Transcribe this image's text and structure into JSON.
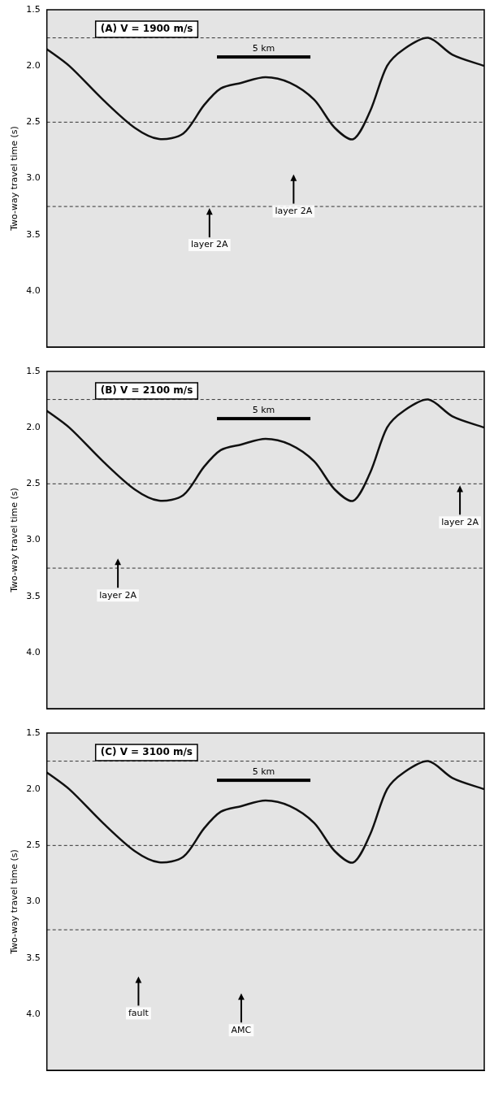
{
  "chart_data": [
    {
      "type": "line",
      "title": "(A) V = 1900 m/s",
      "y_label": "Two-way travel time (s)",
      "x": [
        0,
        1.2,
        3.0,
        4.7,
        6.0,
        7.3,
        8.4,
        9.3,
        10.4,
        11.7,
        13.0,
        14.3,
        15.4,
        16.4,
        17.3,
        18.2,
        19.1,
        20.4,
        21.7,
        23.4
      ],
      "series": [
        {
          "color": "#111111",
          "values": [
            1.85,
            2.0,
            2.3,
            2.55,
            2.65,
            2.6,
            2.35,
            2.2,
            2.15,
            2.1,
            2.15,
            2.3,
            2.55,
            2.65,
            2.4,
            2.0,
            1.85,
            1.75,
            1.9,
            2.0
          ]
        }
      ],
      "xlim": [
        0,
        23.4
      ],
      "ylim": [
        1.5,
        4.5
      ],
      "yticks": [
        1.5,
        {
          "value": 2,
          "label": "2.0"
        },
        2.5,
        {
          "value": 3,
          "label": "3.0"
        },
        3.5,
        {
          "value": 4,
          "label": "4.0"
        }
      ],
      "tick_labels": "y",
      "grid": false,
      "hlines": [
        1.75,
        2.5,
        3.25
      ],
      "scale_bar": {
        "label": "5 km",
        "x": 9.1,
        "y": 1.92,
        "length": 5
      },
      "annotations": [
        {
          "text": "layer 2A",
          "x": 8.7,
          "y": 3.25
        },
        {
          "text": "layer 2A",
          "x": 13.2,
          "y": 2.95
        }
      ]
    },
    {
      "type": "line",
      "title": "(B) V = 2100 m/s",
      "y_label": "Two-way travel time (s)",
      "x": [
        0,
        1.2,
        3.0,
        4.7,
        6.0,
        7.3,
        8.4,
        9.3,
        10.4,
        11.7,
        13.0,
        14.3,
        15.4,
        16.4,
        17.3,
        18.2,
        19.1,
        20.4,
        21.7,
        23.4
      ],
      "series": [
        {
          "color": "#111111",
          "values": [
            1.85,
            2.0,
            2.3,
            2.55,
            2.65,
            2.6,
            2.35,
            2.2,
            2.15,
            2.1,
            2.15,
            2.3,
            2.55,
            2.65,
            2.4,
            2.0,
            1.85,
            1.75,
            1.9,
            2.0
          ]
        }
      ],
      "xlim": [
        0,
        23.4
      ],
      "ylim": [
        1.5,
        4.5
      ],
      "yticks": [
        1.5,
        {
          "value": 2,
          "label": "2.0"
        },
        2.5,
        {
          "value": 3,
          "label": "3.0"
        },
        3.5,
        {
          "value": 4,
          "label": "4.0"
        }
      ],
      "tick_labels": "y",
      "grid": false,
      "hlines": [
        1.75,
        2.5,
        3.25
      ],
      "scale_bar": {
        "label": "5 km",
        "x": 9.1,
        "y": 1.92,
        "length": 5
      },
      "annotations": [
        {
          "text": "layer 2A",
          "x": 3.8,
          "y": 3.15
        },
        {
          "text": "layer 2A",
          "x": 22.1,
          "y": 2.5
        }
      ]
    },
    {
      "type": "line",
      "title": "(C) V = 3100 m/s",
      "y_label": "Two-way travel time (s)",
      "x": [
        0,
        1.2,
        3.0,
        4.7,
        6.0,
        7.3,
        8.4,
        9.3,
        10.4,
        11.7,
        13.0,
        14.3,
        15.4,
        16.4,
        17.3,
        18.2,
        19.1,
        20.4,
        21.7,
        23.4
      ],
      "series": [
        {
          "color": "#111111",
          "values": [
            1.85,
            2.0,
            2.3,
            2.55,
            2.65,
            2.6,
            2.35,
            2.2,
            2.15,
            2.1,
            2.15,
            2.3,
            2.55,
            2.65,
            2.4,
            2.0,
            1.85,
            1.75,
            1.9,
            2.0
          ]
        }
      ],
      "xlim": [
        0,
        23.4
      ],
      "ylim": [
        1.5,
        4.5
      ],
      "yticks": [
        1.5,
        {
          "value": 2,
          "label": "2.0"
        },
        2.5,
        {
          "value": 3,
          "label": "3.0"
        },
        3.5,
        {
          "value": 4,
          "label": "4.0"
        }
      ],
      "tick_labels": "y",
      "grid": false,
      "hlines": [
        1.75,
        2.5,
        3.25
      ],
      "scale_bar": {
        "label": "5 km",
        "x": 9.1,
        "y": 1.92,
        "length": 5
      },
      "annotations": [
        {
          "text": "fault",
          "x": 4.9,
          "y": 3.65
        },
        {
          "text": "AMC",
          "x": 10.4,
          "y": 3.8
        }
      ]
    }
  ]
}
